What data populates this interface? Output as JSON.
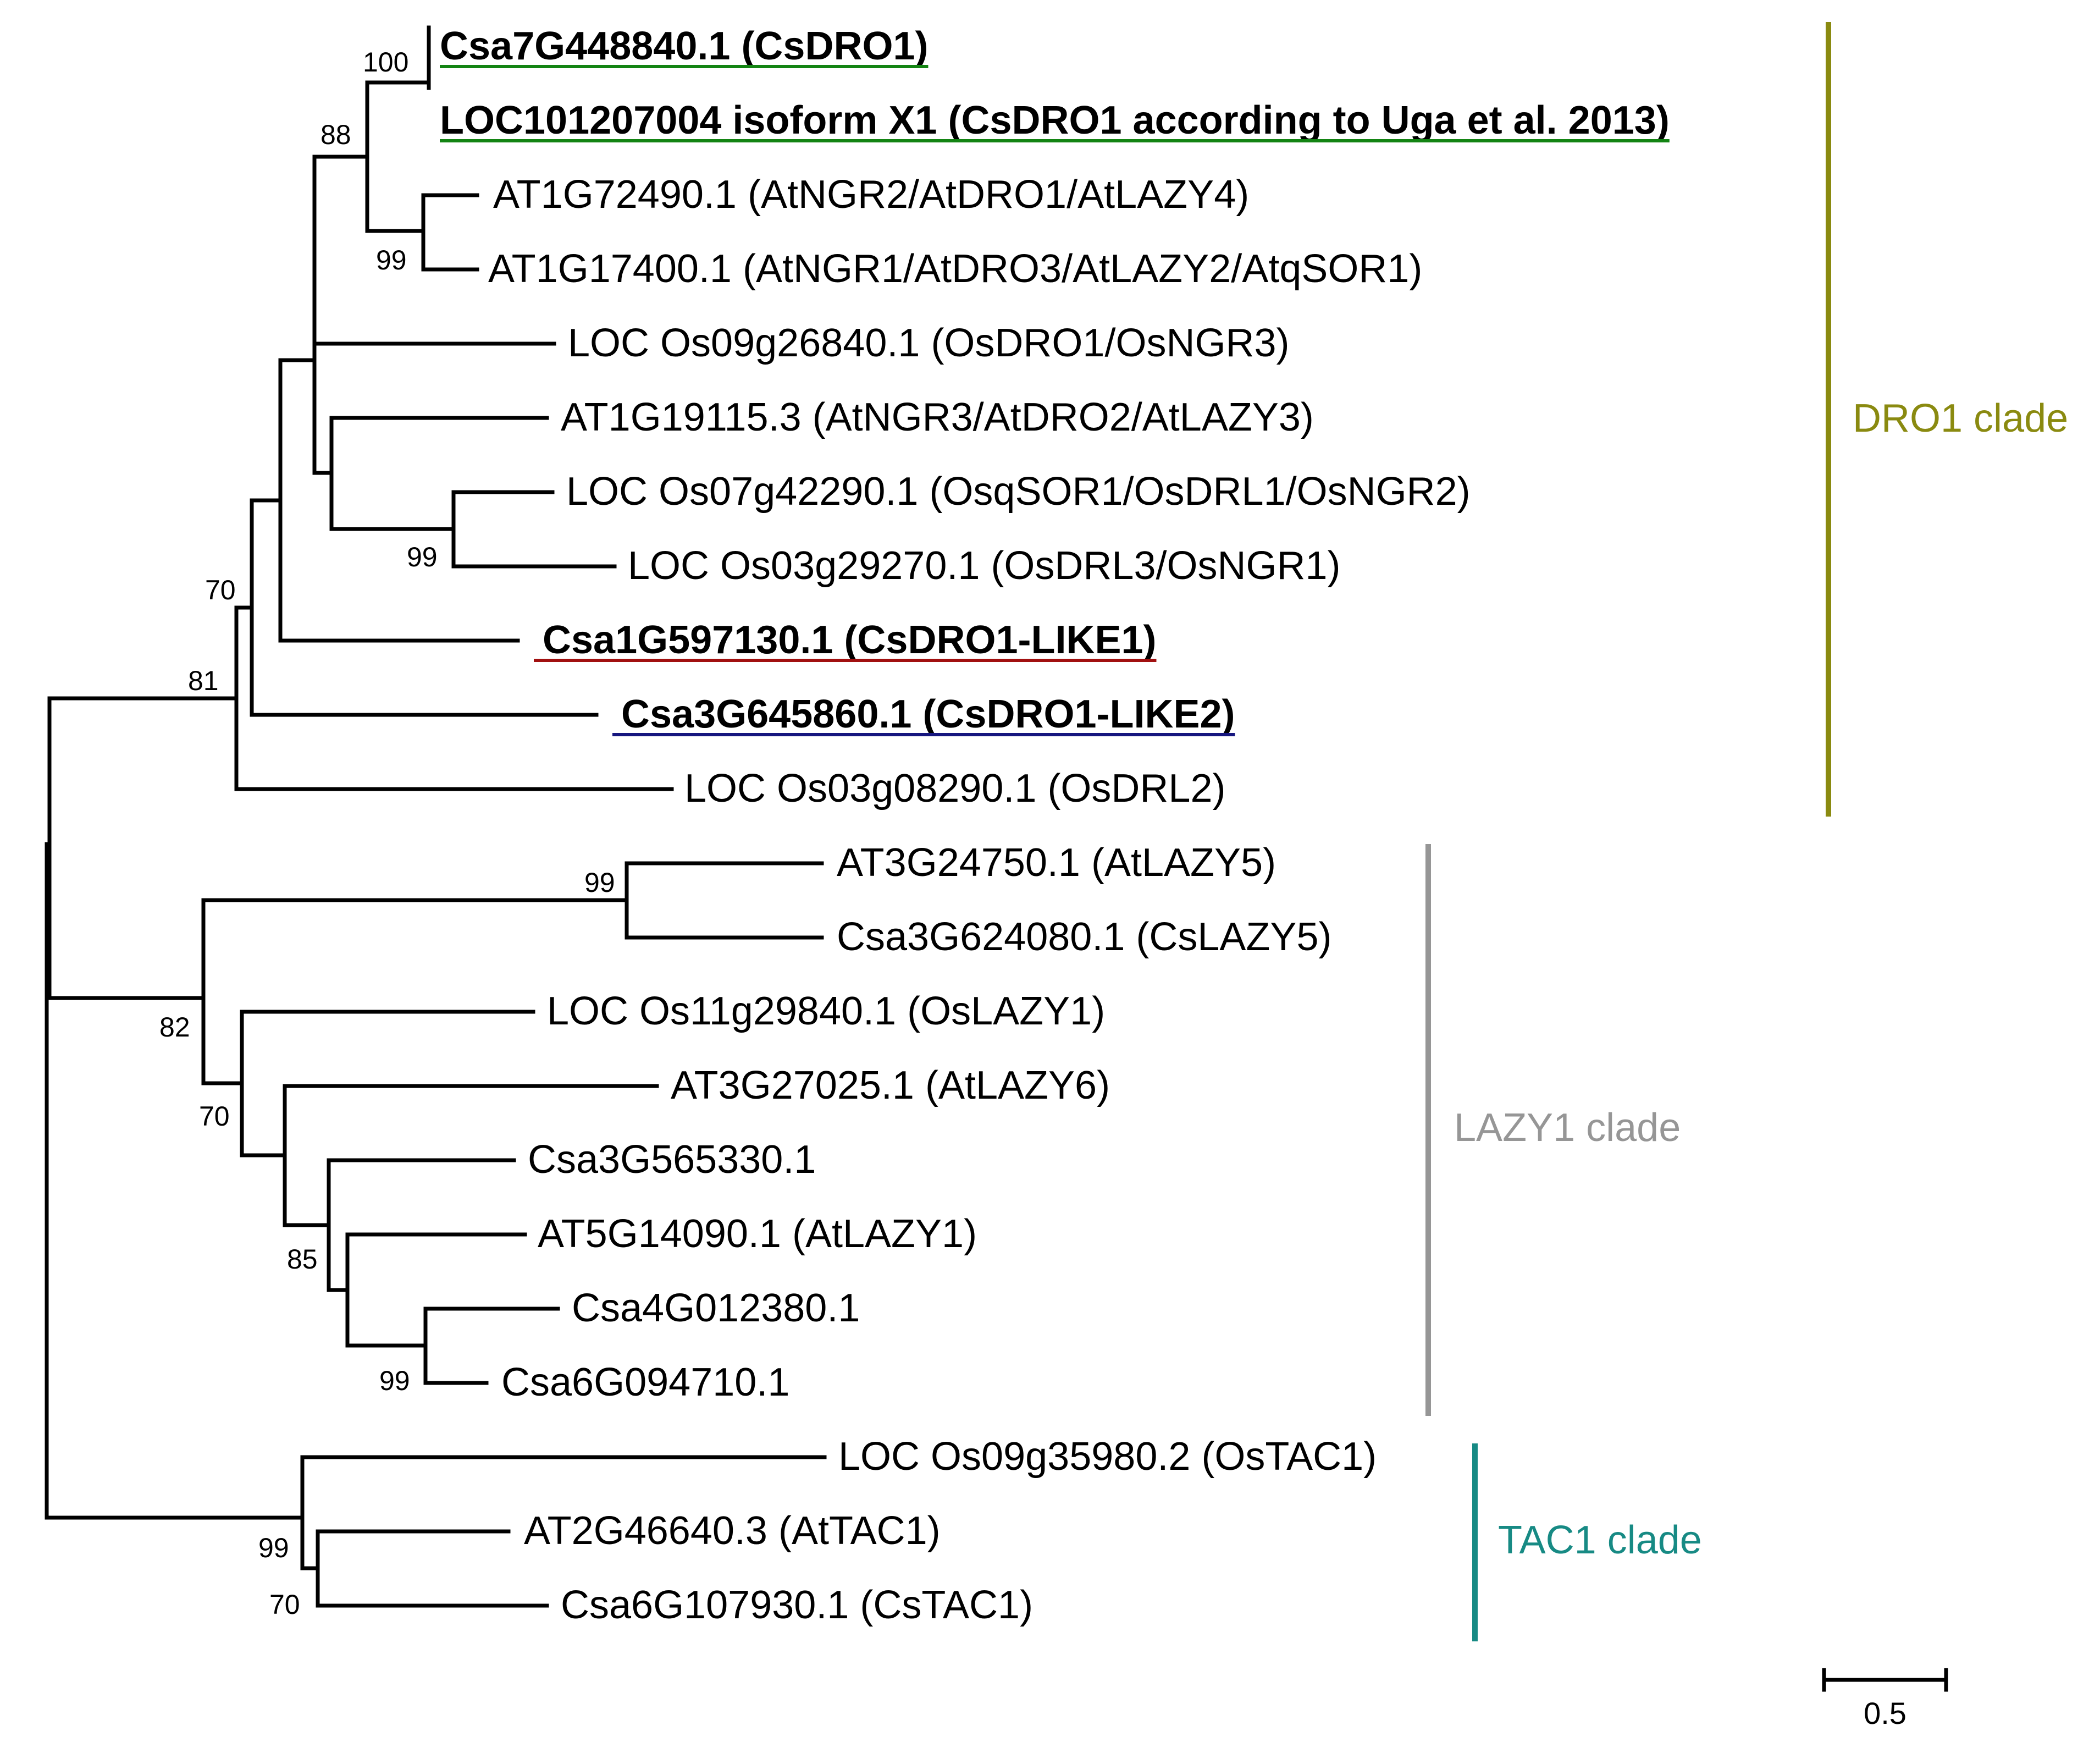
{
  "colors": {
    "csdro1": "#138413",
    "csdro1_like1": "#a11010",
    "csdro1_like2": "#16167f",
    "dro1_clade": "#8a8a10",
    "lazy1_clade": "#969696",
    "tac1_clade": "#178a84",
    "branch": "#000000"
  },
  "tree": {
    "leaves": [
      {
        "id": "csa7g448840",
        "label": "Csa7G448840.1 (CsDRO1)",
        "highlight": "csdro1"
      },
      {
        "id": "loc101207004",
        "label": "LOC101207004 isoform X1 (CsDRO1 according to Uga et al. 2013)",
        "highlight": "csdro1"
      },
      {
        "id": "at1g72490",
        "label": "AT1G72490.1 (AtNGR2/AtDRO1/AtLAZY4)"
      },
      {
        "id": "at1g17400",
        "label": "AT1G17400.1 (AtNGR1/AtDRO3/AtLAZY2/AtqSOR1)"
      },
      {
        "id": "os09g26840",
        "label": "LOC Os09g26840.1 (OsDRO1/OsNGR3)"
      },
      {
        "id": "at1g19115",
        "label": "AT1G19115.3 (AtNGR3/AtDRO2/AtLAZY3)"
      },
      {
        "id": "os07g42290",
        "label": "LOC Os07g42290.1 (OsqSOR1/OsDRL1/OsNGR2)"
      },
      {
        "id": "os03g29270",
        "label": "LOC Os03g29270.1 (OsDRL3/OsNGR1)"
      },
      {
        "id": "csa1g597130",
        "label": " Csa1G597130.1 (CsDRO1-LIKE1)",
        "highlight": "csdro1_like1"
      },
      {
        "id": "csa3g645860",
        "label": " Csa3G645860.1 (CsDRO1-LIKE2)",
        "highlight": "csdro1_like2"
      },
      {
        "id": "os03g08290",
        "label": "LOC Os03g08290.1 (OsDRL2)"
      },
      {
        "id": "at3g24750",
        "label": "AT3G24750.1 (AtLAZY5)"
      },
      {
        "id": "csa3g624080",
        "label": "Csa3G624080.1 (CsLAZY5)"
      },
      {
        "id": "os11g29840",
        "label": "LOC Os11g29840.1 (OsLAZY1)"
      },
      {
        "id": "at3g27025",
        "label": "AT3G27025.1 (AtLAZY6)"
      },
      {
        "id": "csa3g565330",
        "label": "Csa3G565330.1"
      },
      {
        "id": "at5g14090",
        "label": "AT5G14090.1 (AtLAZY1)"
      },
      {
        "id": "csa4g012380",
        "label": "Csa4G012380.1"
      },
      {
        "id": "csa6g094710",
        "label": "Csa6G094710.1"
      },
      {
        "id": "os09g35980",
        "label": "LOC Os09g35980.2 (OsTAC1)"
      },
      {
        "id": "at2g46640",
        "label": "AT2G46640.3 (AtTAC1)"
      },
      {
        "id": "csa6g107930",
        "label": "Csa6G107930.1 (CsTAC1)"
      }
    ],
    "bootstrap_values": [
      "100",
      "88",
      "99",
      "99",
      "70",
      "81",
      "99",
      "82",
      "70",
      "85",
      "99",
      "99",
      "70"
    ],
    "clades": [
      {
        "name": "DRO1 clade",
        "color": "dro1_clade"
      },
      {
        "name": "LAZY1 clade",
        "color": "lazy1_clade"
      },
      {
        "name": "TAC1 clade",
        "color": "tac1_clade"
      }
    ],
    "scale_bar": {
      "value": 0.5,
      "label": "0.5"
    }
  }
}
